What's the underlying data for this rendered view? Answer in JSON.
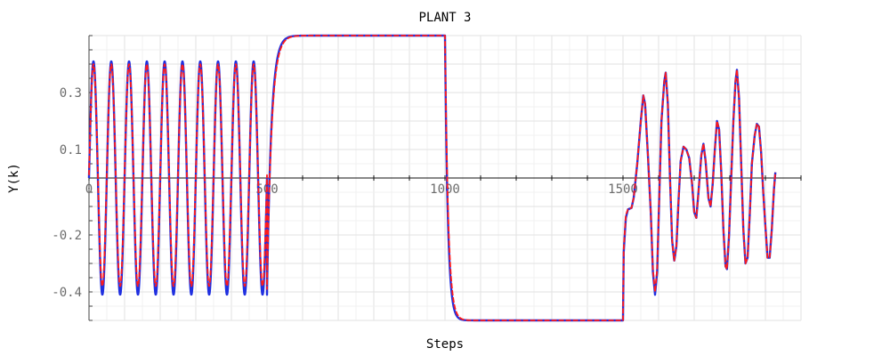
{
  "chart_data": {
    "type": "line",
    "title": "PLANT 3",
    "xlabel": "Steps",
    "ylabel": "Y(k)",
    "xlim": [
      0,
      2000
    ],
    "ylim": [
      -0.5,
      0.5
    ],
    "grid": true,
    "x_ticks": [
      0,
      500,
      1000,
      1500
    ],
    "x_tick_labels": [
      "0",
      "500",
      "1000",
      "1500"
    ],
    "y_ticks": [
      0.3,
      0.1,
      -0.2,
      -0.4
    ],
    "y_tick_labels": [
      "0.3",
      "0.1",
      "-0.2",
      "-0.4"
    ],
    "series": [
      {
        "color": "#1f2fe0",
        "style": "solid",
        "segments": [
          {
            "type": "sine",
            "x0": 0,
            "x1": 500,
            "amplitude": 0.41,
            "offset": 0,
            "period": 50,
            "start": 0,
            "end_value": -0.41
          },
          {
            "type": "rise",
            "x0": 500,
            "x1": 1000,
            "from": -0.41,
            "to": 0.5,
            "tau": 12
          },
          {
            "type": "fall",
            "x0": 1000,
            "x1": 1500,
            "from": 0.5,
            "to": -0.5,
            "tau": 8
          },
          {
            "type": "points",
            "points": [
              [
                1500,
                -0.5
              ],
              [
                1502,
                -0.26
              ],
              [
                1508,
                -0.14
              ],
              [
                1514,
                -0.11
              ],
              [
                1524,
                -0.105
              ],
              [
                1530,
                -0.07
              ],
              [
                1540,
                0.05
              ],
              [
                1550,
                0.2
              ],
              [
                1557,
                0.29
              ],
              [
                1562,
                0.26
              ],
              [
                1570,
                0.08
              ],
              [
                1578,
                -0.12
              ],
              [
                1584,
                -0.33
              ],
              [
                1590,
                -0.41
              ],
              [
                1596,
                -0.33
              ],
              [
                1602,
                -0.06
              ],
              [
                1608,
                0.2
              ],
              [
                1616,
                0.34
              ],
              [
                1620,
                0.37
              ],
              [
                1626,
                0.26
              ],
              [
                1632,
                0.0
              ],
              [
                1638,
                -0.22
              ],
              [
                1644,
                -0.29
              ],
              [
                1650,
                -0.24
              ],
              [
                1656,
                -0.08
              ],
              [
                1662,
                0.06
              ],
              [
                1670,
                0.11
              ],
              [
                1678,
                0.1
              ],
              [
                1686,
                0.07
              ],
              [
                1694,
                -0.02
              ],
              [
                1700,
                -0.12
              ],
              [
                1706,
                -0.14
              ],
              [
                1712,
                -0.05
              ],
              [
                1720,
                0.08
              ],
              [
                1726,
                0.12
              ],
              [
                1732,
                0.06
              ],
              [
                1740,
                -0.07
              ],
              [
                1746,
                -0.1
              ],
              [
                1752,
                -0.02
              ],
              [
                1758,
                0.1
              ],
              [
                1764,
                0.2
              ],
              [
                1770,
                0.17
              ],
              [
                1776,
                0.02
              ],
              [
                1782,
                -0.18
              ],
              [
                1788,
                -0.31
              ],
              [
                1792,
                -0.32
              ],
              [
                1798,
                -0.2
              ],
              [
                1804,
                0.0
              ],
              [
                1810,
                0.2
              ],
              [
                1816,
                0.34
              ],
              [
                1820,
                0.38
              ],
              [
                1826,
                0.28
              ],
              [
                1832,
                0.05
              ],
              [
                1838,
                -0.18
              ],
              [
                1844,
                -0.3
              ],
              [
                1850,
                -0.28
              ],
              [
                1856,
                -0.13
              ],
              [
                1862,
                0.05
              ],
              [
                1870,
                0.15
              ],
              [
                1876,
                0.19
              ],
              [
                1882,
                0.18
              ],
              [
                1888,
                0.09
              ],
              [
                1894,
                -0.05
              ],
              [
                1900,
                -0.17
              ],
              [
                1906,
                -0.28
              ],
              [
                1912,
                -0.28
              ],
              [
                1918,
                -0.18
              ],
              [
                1924,
                -0.04
              ],
              [
                1928,
                0.02
              ]
            ]
          }
        ]
      },
      {
        "color": "#ff1a1a",
        "style": "dashed",
        "segments": [
          {
            "type": "sine",
            "x0": 0,
            "x1": 500,
            "amplitude": 0.39,
            "offset": 0.01,
            "period": 50,
            "start": 0,
            "end_value": -0.39
          },
          {
            "type": "rise",
            "x0": 500,
            "x1": 1000,
            "from": -0.39,
            "to": 0.5,
            "tau": 13
          },
          {
            "type": "fall",
            "x0": 1000,
            "x1": 1500,
            "from": 0.5,
            "to": -0.5,
            "tau": 9
          },
          {
            "type": "points",
            "points": [
              [
                1500,
                -0.5
              ],
              [
                1502,
                -0.25
              ],
              [
                1508,
                -0.13
              ],
              [
                1514,
                -0.11
              ],
              [
                1524,
                -0.105
              ],
              [
                1530,
                -0.07
              ],
              [
                1540,
                0.05
              ],
              [
                1550,
                0.2
              ],
              [
                1557,
                0.29
              ],
              [
                1562,
                0.26
              ],
              [
                1570,
                0.08
              ],
              [
                1578,
                -0.12
              ],
              [
                1584,
                -0.32
              ],
              [
                1590,
                -0.4
              ],
              [
                1596,
                -0.32
              ],
              [
                1602,
                -0.06
              ],
              [
                1608,
                0.2
              ],
              [
                1616,
                0.34
              ],
              [
                1620,
                0.37
              ],
              [
                1626,
                0.26
              ],
              [
                1632,
                0.0
              ],
              [
                1638,
                -0.22
              ],
              [
                1644,
                -0.29
              ],
              [
                1650,
                -0.24
              ],
              [
                1656,
                -0.08
              ],
              [
                1662,
                0.06
              ],
              [
                1670,
                0.11
              ],
              [
                1678,
                0.1
              ],
              [
                1686,
                0.07
              ],
              [
                1694,
                -0.02
              ],
              [
                1700,
                -0.12
              ],
              [
                1706,
                -0.14
              ],
              [
                1712,
                -0.05
              ],
              [
                1720,
                0.08
              ],
              [
                1726,
                0.12
              ],
              [
                1732,
                0.06
              ],
              [
                1740,
                -0.07
              ],
              [
                1746,
                -0.1
              ],
              [
                1752,
                -0.02
              ],
              [
                1758,
                0.1
              ],
              [
                1764,
                0.2
              ],
              [
                1770,
                0.17
              ],
              [
                1776,
                0.02
              ],
              [
                1782,
                -0.18
              ],
              [
                1788,
                -0.31
              ],
              [
                1792,
                -0.32
              ],
              [
                1798,
                -0.2
              ],
              [
                1804,
                0.0
              ],
              [
                1810,
                0.2
              ],
              [
                1816,
                0.34
              ],
              [
                1820,
                0.38
              ],
              [
                1826,
                0.28
              ],
              [
                1832,
                0.05
              ],
              [
                1838,
                -0.18
              ],
              [
                1844,
                -0.3
              ],
              [
                1850,
                -0.28
              ],
              [
                1856,
                -0.13
              ],
              [
                1862,
                0.05
              ],
              [
                1870,
                0.15
              ],
              [
                1876,
                0.19
              ],
              [
                1882,
                0.18
              ],
              [
                1888,
                0.09
              ],
              [
                1894,
                -0.05
              ],
              [
                1900,
                -0.17
              ],
              [
                1906,
                -0.28
              ],
              [
                1912,
                -0.28
              ],
              [
                1918,
                -0.18
              ],
              [
                1924,
                -0.04
              ],
              [
                1928,
                0.02
              ]
            ]
          }
        ]
      }
    ]
  }
}
